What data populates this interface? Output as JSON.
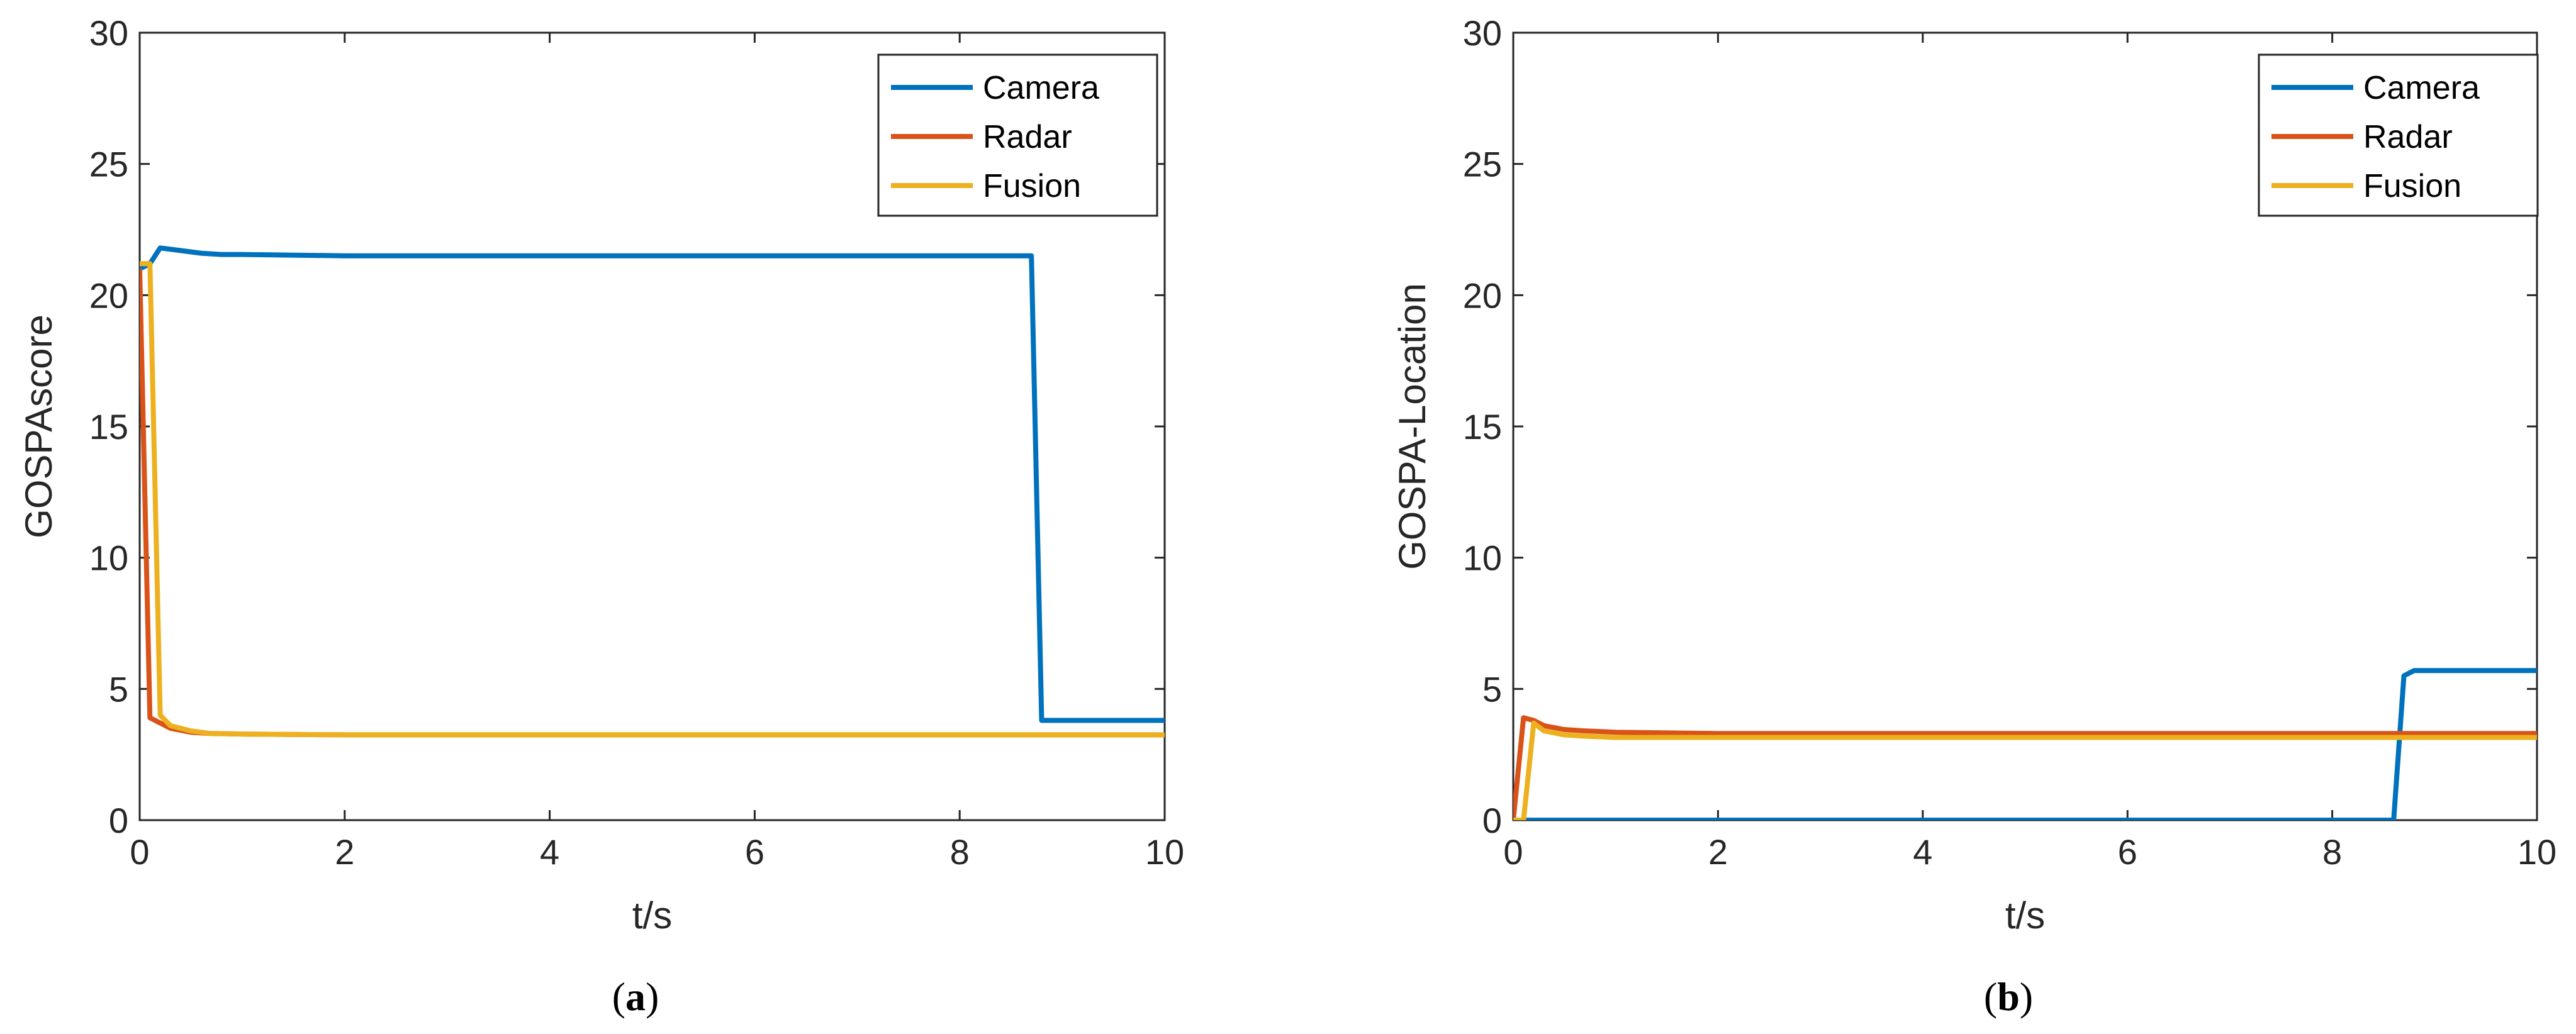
{
  "chart_data": [
    {
      "type": "line",
      "caption_open": "(",
      "caption_letter": "a",
      "caption_close": ")",
      "xlabel": "t/s",
      "ylabel": "GOSPAscore",
      "xlim": [
        0,
        10
      ],
      "ylim": [
        0,
        30
      ],
      "xticks": [
        "0",
        "2",
        "4",
        "6",
        "8",
        "10"
      ],
      "yticks": [
        "0",
        "5",
        "10",
        "15",
        "20",
        "25",
        "30"
      ],
      "grid": false,
      "legend_position": "top-right",
      "series": [
        {
          "name": "Camera",
          "color": "#0072BD",
          "x": [
            0.0,
            0.1,
            0.2,
            0.4,
            0.6,
            0.8,
            1.0,
            2.0,
            4.0,
            6.0,
            8.0,
            8.7,
            8.8,
            10.0
          ],
          "y": [
            21.0,
            21.2,
            21.8,
            21.7,
            21.6,
            21.55,
            21.55,
            21.5,
            21.5,
            21.5,
            21.5,
            21.5,
            3.8,
            3.8
          ]
        },
        {
          "name": "Radar",
          "color": "#D95319",
          "x": [
            0.0,
            0.1,
            0.2,
            0.3,
            0.5,
            0.7,
            1.0,
            2.0,
            4.0,
            6.0,
            8.0,
            10.0
          ],
          "y": [
            21.0,
            3.9,
            3.7,
            3.5,
            3.35,
            3.3,
            3.28,
            3.25,
            3.25,
            3.25,
            3.25,
            3.25
          ]
        },
        {
          "name": "Fusion",
          "color": "#EDB120",
          "x": [
            0.0,
            0.1,
            0.2,
            0.3,
            0.5,
            0.7,
            1.0,
            2.0,
            4.0,
            6.0,
            8.0,
            10.0
          ],
          "y": [
            21.2,
            21.2,
            4.0,
            3.6,
            3.4,
            3.3,
            3.28,
            3.25,
            3.25,
            3.25,
            3.25,
            3.25
          ]
        }
      ]
    },
    {
      "type": "line",
      "caption_open": "(",
      "caption_letter": "b",
      "caption_close": ")",
      "xlabel": "t/s",
      "ylabel": "GOSPA-Location",
      "xlim": [
        0,
        10
      ],
      "ylim": [
        0,
        30
      ],
      "xticks": [
        "0",
        "2",
        "4",
        "6",
        "8",
        "10"
      ],
      "yticks": [
        "0",
        "5",
        "10",
        "15",
        "20",
        "25",
        "30"
      ],
      "grid": false,
      "legend_position": "top-right",
      "series": [
        {
          "name": "Camera",
          "color": "#0072BD",
          "x": [
            0.0,
            0.1,
            2.0,
            4.0,
            6.0,
            8.0,
            8.6,
            8.7,
            8.8,
            10.0
          ],
          "y": [
            0.0,
            0.0,
            0.0,
            0.0,
            0.0,
            0.0,
            0.0,
            5.5,
            5.7,
            5.7
          ]
        },
        {
          "name": "Radar",
          "color": "#D95319",
          "x": [
            0.0,
            0.1,
            0.2,
            0.3,
            0.5,
            0.7,
            1.0,
            2.0,
            4.0,
            6.0,
            8.0,
            10.0
          ],
          "y": [
            0.0,
            3.9,
            3.8,
            3.6,
            3.45,
            3.4,
            3.35,
            3.3,
            3.3,
            3.3,
            3.3,
            3.3
          ]
        },
        {
          "name": "Fusion",
          "color": "#EDB120",
          "x": [
            0.0,
            0.1,
            0.2,
            0.3,
            0.5,
            0.7,
            1.0,
            2.0,
            4.0,
            6.0,
            8.0,
            10.0
          ],
          "y": [
            0.0,
            0.0,
            3.7,
            3.4,
            3.25,
            3.2,
            3.15,
            3.15,
            3.15,
            3.15,
            3.15,
            3.15
          ]
        }
      ]
    }
  ]
}
